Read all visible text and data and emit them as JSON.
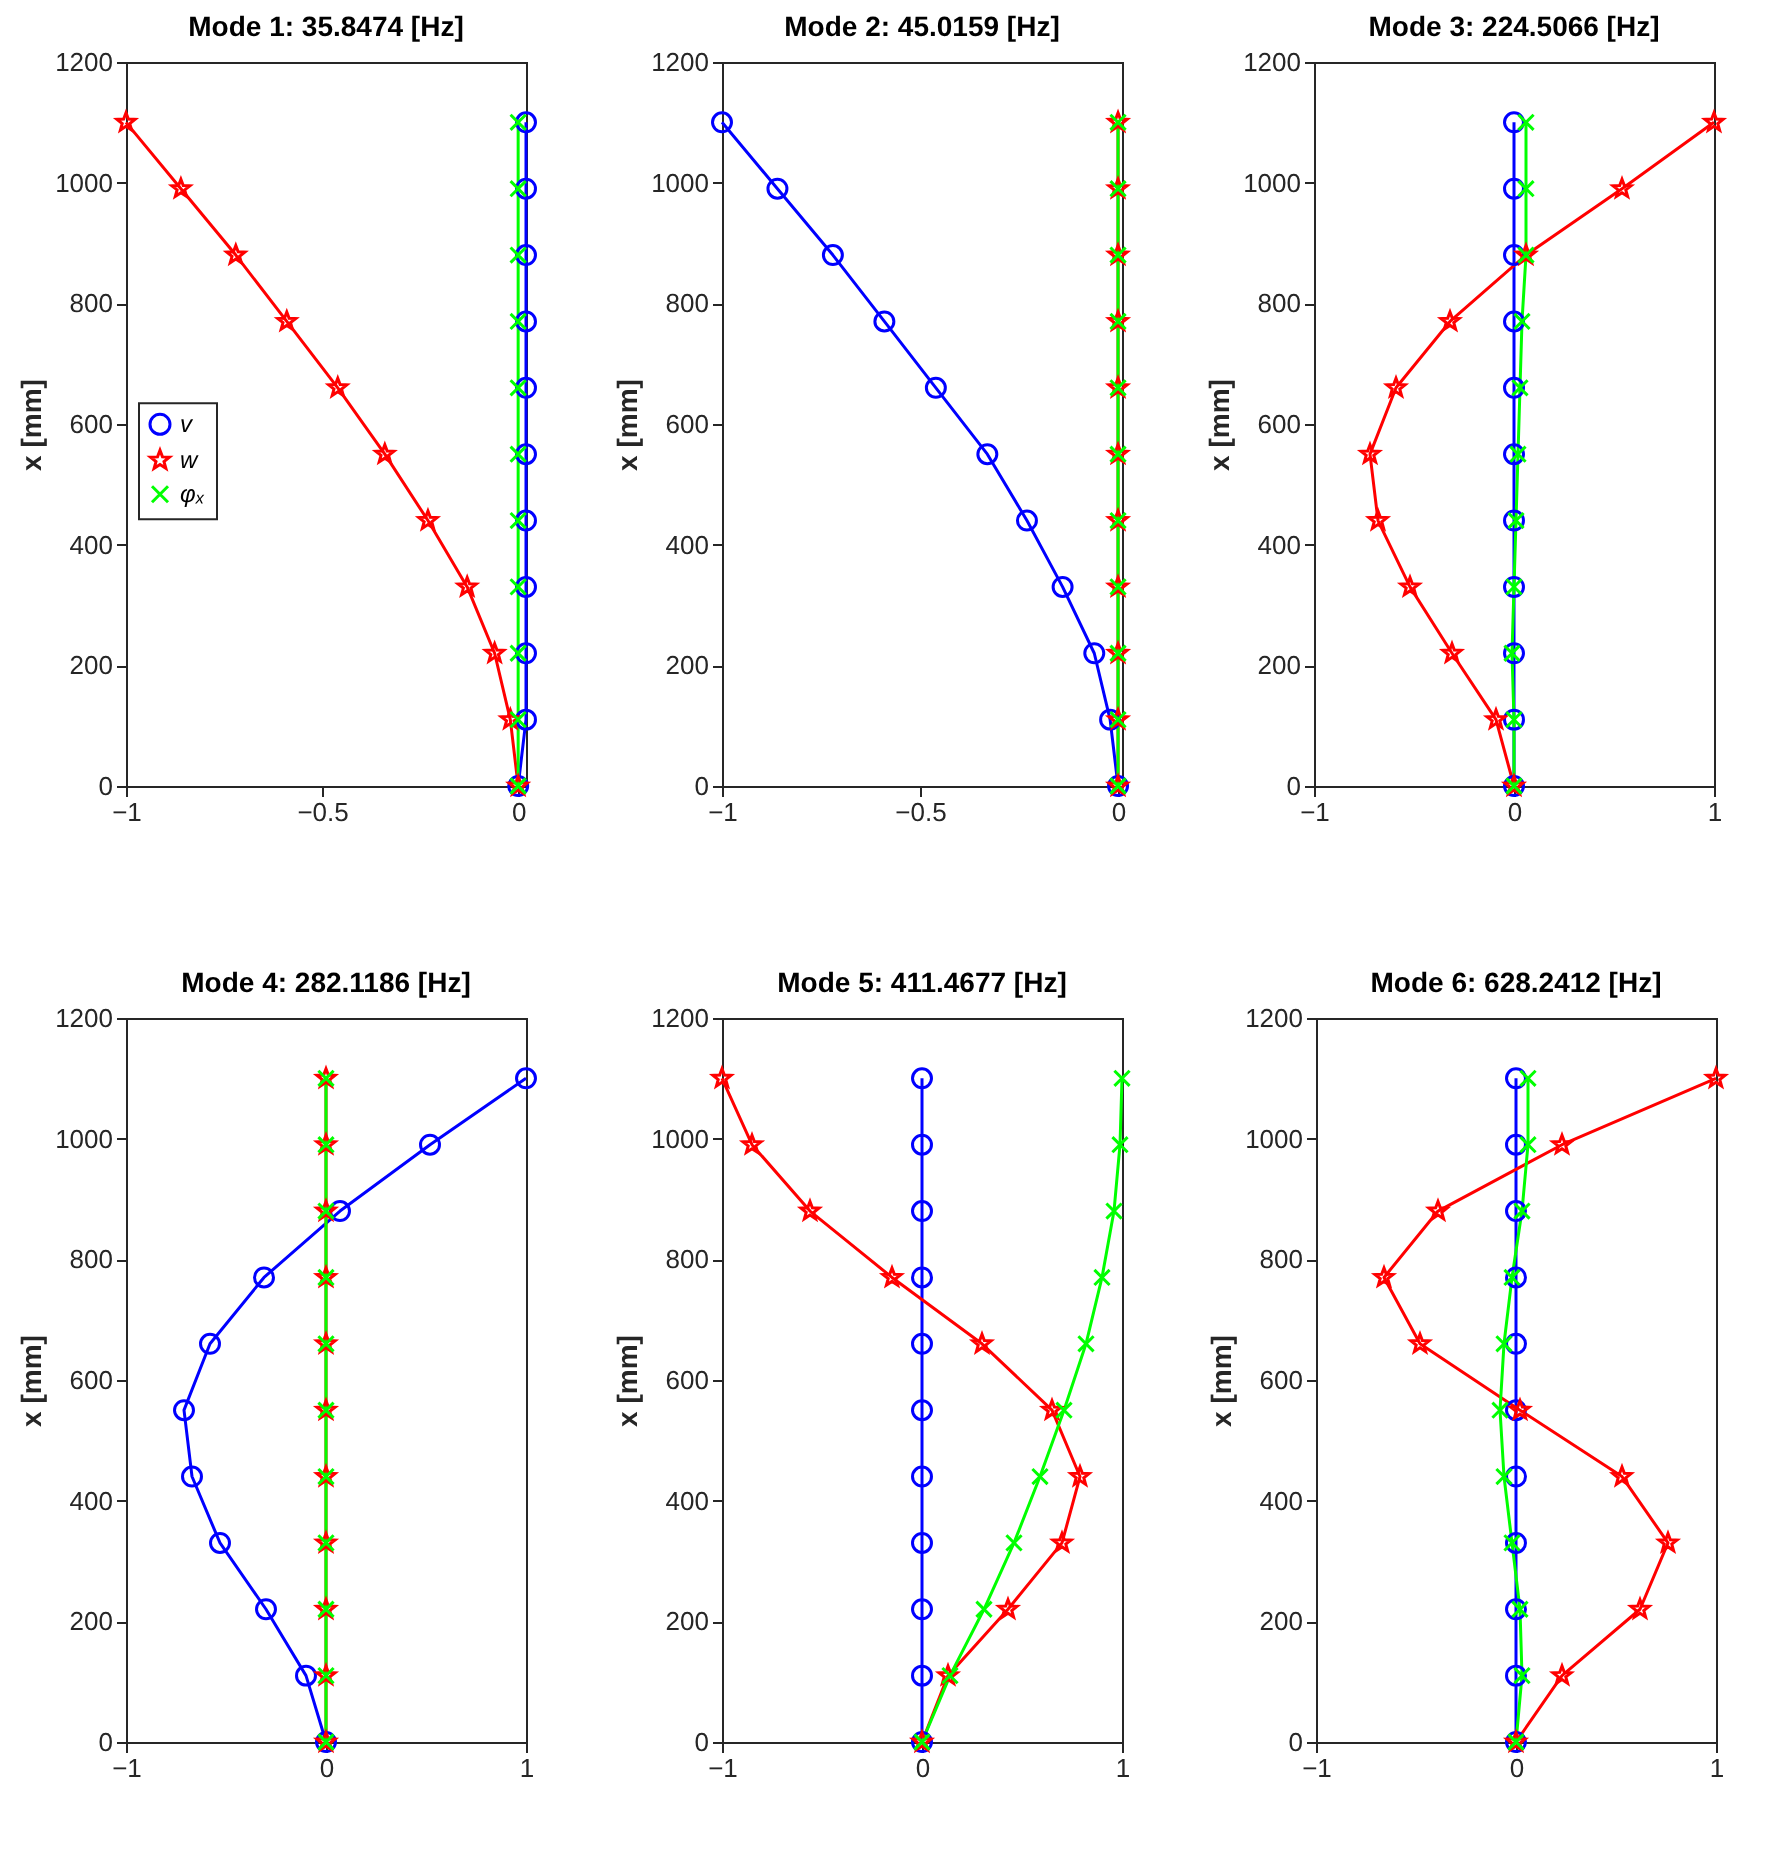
{
  "chart_data": [
    {
      "type": "line",
      "title": "Mode 1: 35.8474 [Hz]",
      "ylabel": "x [mm]",
      "xlim": [
        -1,
        0.02
      ],
      "xticks": [
        -1,
        -0.5,
        0
      ],
      "ylim": [
        0,
        1200
      ],
      "yticks": [
        0,
        200,
        400,
        600,
        800,
        1000,
        1200
      ],
      "grid": false,
      "legend": "left",
      "line_style": "solid",
      "series": [
        {
          "name": "v",
          "color": "#0000ff",
          "marker": "circle",
          "x": [
            0,
            0.02,
            0.02,
            0.02,
            0.02,
            0.02,
            0.02,
            0.02,
            0.02,
            0.02,
            0.02
          ],
          "values": [
            0,
            110,
            220,
            330,
            440,
            550,
            660,
            770,
            880,
            990,
            1100
          ]
        },
        {
          "name": "w",
          "color": "#ff0000",
          "marker": "star",
          "x": [
            0,
            -0.02,
            -0.06,
            -0.13,
            -0.23,
            -0.34,
            -0.46,
            -0.59,
            -0.72,
            -0.86,
            -1
          ],
          "values": [
            0,
            110,
            220,
            330,
            440,
            550,
            660,
            770,
            880,
            990,
            1100
          ]
        },
        {
          "name": "φₓ",
          "color": "#00ff00",
          "marker": "cross",
          "x": [
            0,
            0,
            0,
            0,
            0,
            0,
            0,
            0,
            0,
            0,
            0
          ],
          "values": [
            0,
            110,
            220,
            330,
            440,
            550,
            660,
            770,
            880,
            990,
            1100
          ]
        }
      ]
    },
    {
      "type": "line",
      "title": "Mode 2: 45.0159 [Hz]",
      "ylabel": "x [mm]",
      "xlim": [
        -1,
        0.01
      ],
      "xticks": [
        -1,
        -0.5,
        0
      ],
      "ylim": [
        0,
        1200
      ],
      "yticks": [
        0,
        200,
        400,
        600,
        800,
        1000,
        1200
      ],
      "grid": false,
      "legend": false,
      "line_style": "solid",
      "series": [
        {
          "color": "#0000ff",
          "marker": "circle",
          "x": [
            0,
            -0.02,
            -0.06,
            -0.14,
            -0.23,
            -0.33,
            -0.46,
            -0.59,
            -0.72,
            -0.86,
            -1
          ],
          "values": [
            0,
            110,
            220,
            330,
            440,
            550,
            660,
            770,
            880,
            990,
            1100
          ]
        },
        {
          "color": "#ff0000",
          "marker": "star",
          "x": [
            0,
            0,
            0,
            0,
            0,
            0,
            0,
            0,
            0,
            0,
            0
          ],
          "values": [
            0,
            110,
            220,
            330,
            440,
            550,
            660,
            770,
            880,
            990,
            1100
          ]
        },
        {
          "color": "#00ff00",
          "marker": "cross",
          "x": [
            0,
            0,
            0,
            0,
            0,
            0,
            0,
            0,
            0,
            0,
            0
          ],
          "values": [
            0,
            110,
            220,
            330,
            440,
            550,
            660,
            770,
            880,
            990,
            1100
          ]
        }
      ]
    },
    {
      "type": "line",
      "title": "Mode 3: 224.5066 [Hz]",
      "ylabel": "x [mm]",
      "xlim": [
        -1,
        1
      ],
      "xticks": [
        -1,
        0,
        1
      ],
      "ylim": [
        0,
        1200
      ],
      "yticks": [
        0,
        200,
        400,
        600,
        800,
        1000,
        1200
      ],
      "grid": false,
      "legend": false,
      "line_style": "solid",
      "series": [
        {
          "color": "#0000ff",
          "marker": "circle",
          "x": [
            0,
            0,
            0,
            0,
            0,
            0,
            0,
            0,
            0,
            0,
            0
          ],
          "values": [
            0,
            110,
            220,
            330,
            440,
            550,
            660,
            770,
            880,
            990,
            1100
          ]
        },
        {
          "color": "#ff0000",
          "marker": "star",
          "x": [
            0,
            -0.09,
            -0.31,
            -0.52,
            -0.68,
            -0.72,
            -0.59,
            -0.32,
            0.06,
            0.54,
            1
          ],
          "values": [
            0,
            110,
            220,
            330,
            440,
            550,
            660,
            770,
            880,
            990,
            1100
          ]
        },
        {
          "color": "#00ff00",
          "marker": "cross",
          "x": [
            0,
            0,
            -0.01,
            0,
            0.01,
            0.02,
            0.03,
            0.04,
            0.06,
            0.06,
            0.06
          ],
          "values": [
            0,
            110,
            220,
            330,
            440,
            550,
            660,
            770,
            880,
            990,
            1100
          ]
        }
      ]
    },
    {
      "type": "line",
      "title": "Mode 4: 282.1186 [Hz]",
      "ylabel": "x [mm]",
      "xlim": [
        -1,
        1
      ],
      "xticks": [
        -1,
        0,
        1
      ],
      "ylim": [
        0,
        1200
      ],
      "yticks": [
        0,
        200,
        400,
        600,
        800,
        1000,
        1200
      ],
      "grid": false,
      "legend": false,
      "line_style": "solid",
      "series": [
        {
          "color": "#0000ff",
          "marker": "circle",
          "x": [
            0,
            -0.1,
            -0.3,
            -0.53,
            -0.67,
            -0.71,
            -0.58,
            -0.31,
            0.07,
            0.52,
            1
          ],
          "values": [
            0,
            110,
            220,
            330,
            440,
            550,
            660,
            770,
            880,
            990,
            1100
          ]
        },
        {
          "color": "#ff0000",
          "marker": "star",
          "x": [
            0,
            0,
            0,
            0,
            0,
            0,
            0,
            0,
            0,
            0,
            0
          ],
          "values": [
            0,
            110,
            220,
            330,
            440,
            550,
            660,
            770,
            880,
            990,
            1100
          ]
        },
        {
          "color": "#00ff00",
          "marker": "cross",
          "x": [
            0,
            0,
            0,
            0,
            0,
            0,
            0,
            0,
            0,
            0,
            0
          ],
          "values": [
            0,
            110,
            220,
            330,
            440,
            550,
            660,
            770,
            880,
            990,
            1100
          ]
        }
      ]
    },
    {
      "type": "line",
      "title": "Mode 5: 411.4677 [Hz]",
      "ylabel": "x [mm]",
      "xlim": [
        -1,
        1
      ],
      "xticks": [
        -1,
        0,
        1
      ],
      "ylim": [
        0,
        1200
      ],
      "yticks": [
        0,
        200,
        400,
        600,
        800,
        1000,
        1200
      ],
      "grid": false,
      "legend": false,
      "line_style": "solid",
      "series": [
        {
          "color": "#0000ff",
          "marker": "circle",
          "x": [
            0,
            0,
            0,
            0,
            0,
            0,
            0,
            0,
            0,
            0,
            0
          ],
          "values": [
            0,
            110,
            220,
            330,
            440,
            550,
            660,
            770,
            880,
            990,
            1100
          ]
        },
        {
          "color": "#ff0000",
          "marker": "star",
          "x": [
            0,
            0.13,
            0.43,
            0.7,
            0.79,
            0.65,
            0.3,
            -0.15,
            -0.56,
            -0.85,
            -1
          ],
          "values": [
            0,
            110,
            220,
            330,
            440,
            550,
            660,
            770,
            880,
            990,
            1100
          ]
        },
        {
          "color": "#00ff00",
          "marker": "cross",
          "x": [
            0,
            0.14,
            0.31,
            0.46,
            0.59,
            0.71,
            0.82,
            0.9,
            0.96,
            0.99,
            1
          ],
          "values": [
            0,
            110,
            220,
            330,
            440,
            550,
            660,
            770,
            880,
            990,
            1100
          ]
        }
      ]
    },
    {
      "type": "line",
      "title": "Mode 6: 628.2412 [Hz]",
      "ylabel": "x [mm]",
      "xlim": [
        -1,
        1
      ],
      "xticks": [
        -1,
        0,
        1
      ],
      "ylim": [
        0,
        1200
      ],
      "yticks": [
        0,
        200,
        400,
        600,
        800,
        1000,
        1200
      ],
      "grid": false,
      "legend": false,
      "line_style": "solid",
      "series": [
        {
          "color": "#0000ff",
          "marker": "circle",
          "x": [
            0,
            0,
            0,
            0,
            0,
            0,
            0,
            0,
            0,
            0,
            0
          ],
          "values": [
            0,
            110,
            220,
            330,
            440,
            550,
            660,
            770,
            880,
            990,
            1100
          ]
        },
        {
          "color": "#ff0000",
          "marker": "star",
          "x": [
            0,
            0.23,
            0.62,
            0.76,
            0.53,
            0.02,
            -0.48,
            -0.66,
            -0.39,
            0.23,
            1
          ],
          "values": [
            0,
            110,
            220,
            330,
            440,
            550,
            660,
            770,
            880,
            990,
            1100
          ]
        },
        {
          "color": "#00ff00",
          "marker": "cross",
          "x": [
            0,
            0.03,
            0.02,
            -0.02,
            -0.06,
            -0.08,
            -0.06,
            -0.02,
            0.03,
            0.06,
            0.06
          ],
          "values": [
            0,
            110,
            220,
            330,
            440,
            550,
            660,
            770,
            880,
            990,
            1100
          ]
        }
      ]
    }
  ]
}
